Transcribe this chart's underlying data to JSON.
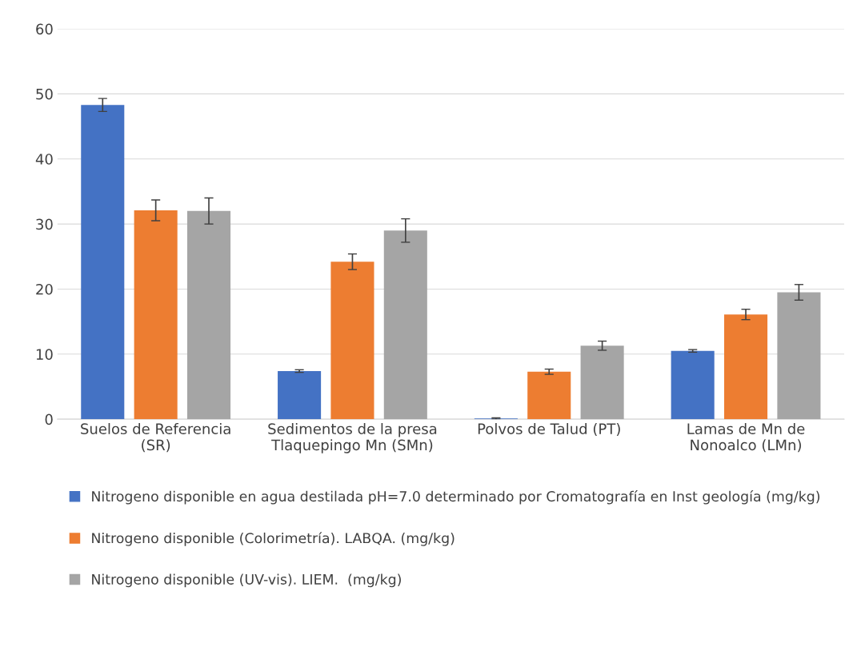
{
  "chart_data": {
    "type": "bar",
    "categories": [
      "Suelos de Referencia\n(SR)",
      "Sedimentos de la presa\nTlaquepingo Mn (SMn)",
      "Polvos de Talud (PT)",
      "Lamas de Mn de\nNonoalco (LMn)"
    ],
    "series": [
      {
        "name": "Nitrogeno disponible en agua destilada pH=7.0 determinado por Cromatografía en Inst geología (mg/kg)",
        "color": "#4472c4",
        "values": [
          48.3,
          7.4,
          0.1,
          10.5
        ],
        "errors": [
          1.0,
          0.2,
          0.1,
          0.2
        ]
      },
      {
        "name": "Nitrogeno disponible (Colorimetría). LABQA. (mg/kg)",
        "color": "#ed7d31",
        "values": [
          32.1,
          24.2,
          7.3,
          16.1
        ],
        "errors": [
          1.6,
          1.2,
          0.4,
          0.8
        ]
      },
      {
        "name": "Nitrogeno disponible (UV-vis). LIEM.  (mg/kg)",
        "color": "#a5a5a5",
        "values": [
          32.0,
          29.0,
          11.3,
          19.5
        ],
        "errors": [
          2.0,
          1.8,
          0.7,
          1.2
        ]
      }
    ],
    "ylim": [
      0,
      60
    ],
    "yticks": [
      0,
      10,
      20,
      30,
      40,
      50,
      60
    ],
    "grid": "y",
    "legend": "bottom"
  }
}
